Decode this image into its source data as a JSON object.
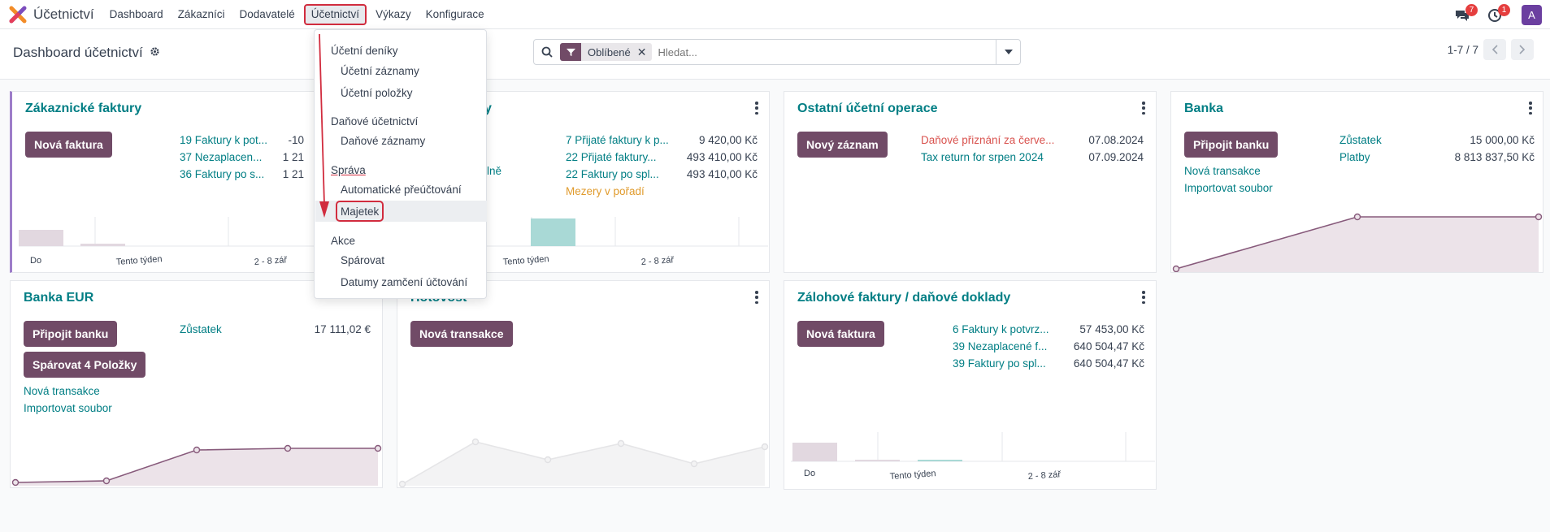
{
  "app": {
    "title": "Účetnictví"
  },
  "nav": {
    "items": [
      "Dashboard",
      "Zákazníci",
      "Dodavatelé",
      "Účetnictví",
      "Výkazy",
      "Konfigurace"
    ]
  },
  "systray": {
    "messages_count": "7",
    "activities_count": "1",
    "avatar_letter": "A"
  },
  "control": {
    "title": "Dashboard účetnictví",
    "facet": "Oblíbené",
    "search_placeholder": "Hledat...",
    "pager": "1-7 / 7"
  },
  "dropdown": {
    "sec1": "Účetní deníky",
    "sec1_items": [
      "Účetní záznamy",
      "Účetní položky"
    ],
    "sec2": "Daňové účetnictví",
    "sec2_items": [
      "Daňové záznamy"
    ],
    "sec3": "Správa",
    "sec3_items": [
      "Automatické přeúčtování",
      "Majetek"
    ],
    "sec4": "Akce",
    "sec4_items": [
      "Spárovat",
      "Datumy zamčení účtování"
    ]
  },
  "cards": {
    "customer": {
      "title": "Zákaznické faktury",
      "button": "Nová faktura",
      "stats": [
        {
          "label": "19 Faktury k pot...",
          "value": "-10"
        },
        {
          "label": "37 Nezaplacen...",
          "value": "1 21"
        },
        {
          "label": "36 Faktury po s...",
          "value": "1 21"
        }
      ],
      "axis": [
        "Do",
        "Tento týden",
        "2 - 8 zář"
      ]
    },
    "vendor": {
      "title_tail": "y",
      "stats": [
        {
          "label": "7 Přijaté faktury k p...",
          "value": "9 420,00 Kč"
        },
        {
          "label": "22 Přijaté faktury...",
          "value": "493 410,00 Kč"
        },
        {
          "label": "22 Faktury po spl...",
          "value": "493 410,00 Kč"
        }
      ],
      "gap_link": "Mezery v pořadí",
      "partial_left": "lně",
      "axis": [
        "Tento týden",
        "2 - 8 zář"
      ]
    },
    "misc": {
      "title": "Ostatní účetní operace",
      "button": "Nový záznam",
      "rows": [
        {
          "label": "Daňové přiznání za červe...",
          "value": "07.08.2024"
        },
        {
          "label": "Tax return for srpen 2024",
          "value": "07.09.2024"
        }
      ]
    },
    "bank": {
      "title": "Banka",
      "button": "Připojit banku",
      "stats": [
        {
          "label": "Zůstatek",
          "value": "15 000,00 Kč"
        },
        {
          "label": "Platby",
          "value": "8 813 837,50 Kč"
        }
      ],
      "links": [
        "Nová transakce",
        "Importovat soubor"
      ]
    },
    "bank_eur": {
      "title": "Banka EUR",
      "button": "Připojit banku",
      "button2": "Spárovat 4 Položky",
      "stats": [
        {
          "label": "Zůstatek",
          "value": "17 111,02 €"
        }
      ],
      "links": [
        "Nová transakce",
        "Importovat soubor"
      ]
    },
    "cash": {
      "title_tail": "Hotovost",
      "button": "Nová transakce"
    },
    "advance": {
      "title": "Zálohové faktury / daňové doklady",
      "button": "Nová faktura",
      "stats": [
        {
          "label": "6 Faktury k potvrz...",
          "value": "57 453,00 Kč"
        },
        {
          "label": "39 Nezaplacené f...",
          "value": "640 504,47 Kč"
        },
        {
          "label": "39 Faktury po spl...",
          "value": "640 504,47 Kč"
        }
      ],
      "axis": [
        "Do",
        "Tento týden",
        "2 - 8 zář"
      ]
    }
  },
  "colors": {
    "brand": "#714b67",
    "link": "#017e84",
    "annotation": "#d12c3e"
  }
}
